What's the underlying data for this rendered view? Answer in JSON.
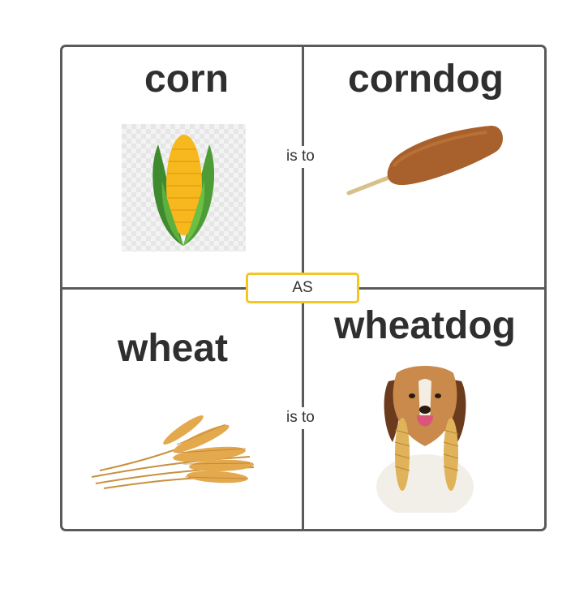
{
  "quadrants": {
    "top_left": {
      "word": "corn",
      "image": "corn-cob-icon"
    },
    "top_right": {
      "word": "corndog",
      "image": "corndog-icon"
    },
    "bottom_left": {
      "word": "wheat",
      "image": "wheat-bundle-icon"
    },
    "bottom_right": {
      "word": "wheatdog",
      "image": "dog-with-wheat-image"
    }
  },
  "connectors": {
    "top": "is to",
    "bottom": "is to",
    "middle": "AS"
  },
  "colors": {
    "border": "#5a5a5a",
    "as_box_border": "#f2c623",
    "text": "#2f2f2f"
  }
}
